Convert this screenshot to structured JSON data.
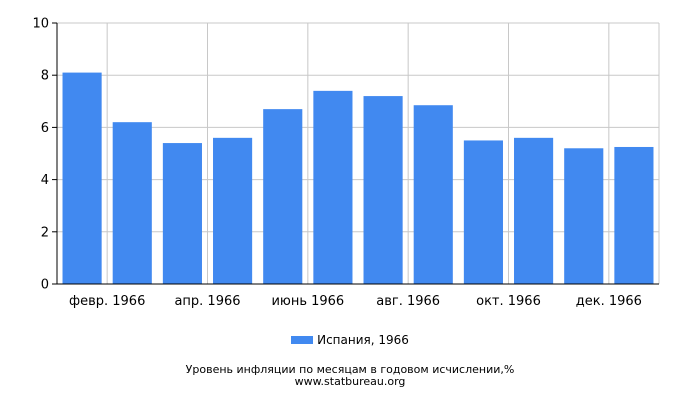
{
  "chart_data": {
    "type": "bar",
    "categories": [
      "янв. 1966",
      "февр. 1966",
      "март 1966",
      "апр. 1966",
      "май 1966",
      "июнь 1966",
      "июль 1966",
      "авг. 1966",
      "сент. 1966",
      "окт. 1966",
      "нояб. 1966",
      "дек. 1966"
    ],
    "shown_x_labels": [
      "",
      "февр. 1966",
      "",
      "апр. 1966",
      "",
      "июнь 1966",
      "",
      "авг. 1966",
      "",
      "окт. 1966",
      "",
      "дек. 1966"
    ],
    "series": [
      {
        "name": "Испания, 1966",
        "values": [
          8.1,
          6.2,
          5.4,
          5.6,
          6.7,
          7.4,
          7.2,
          6.85,
          5.5,
          5.6,
          5.2,
          5.25
        ]
      }
    ],
    "ylim": [
      0,
      10
    ],
    "yticks": [
      0,
      2,
      4,
      6,
      8,
      10
    ],
    "grid": true,
    "legend_position": "bottom",
    "bar_color": "#4189f0",
    "grid_color": "#c8c8c8",
    "title": "Уровень инфляции по месяцам в годовом исчислении,%",
    "source": "www.statbureau.org"
  }
}
